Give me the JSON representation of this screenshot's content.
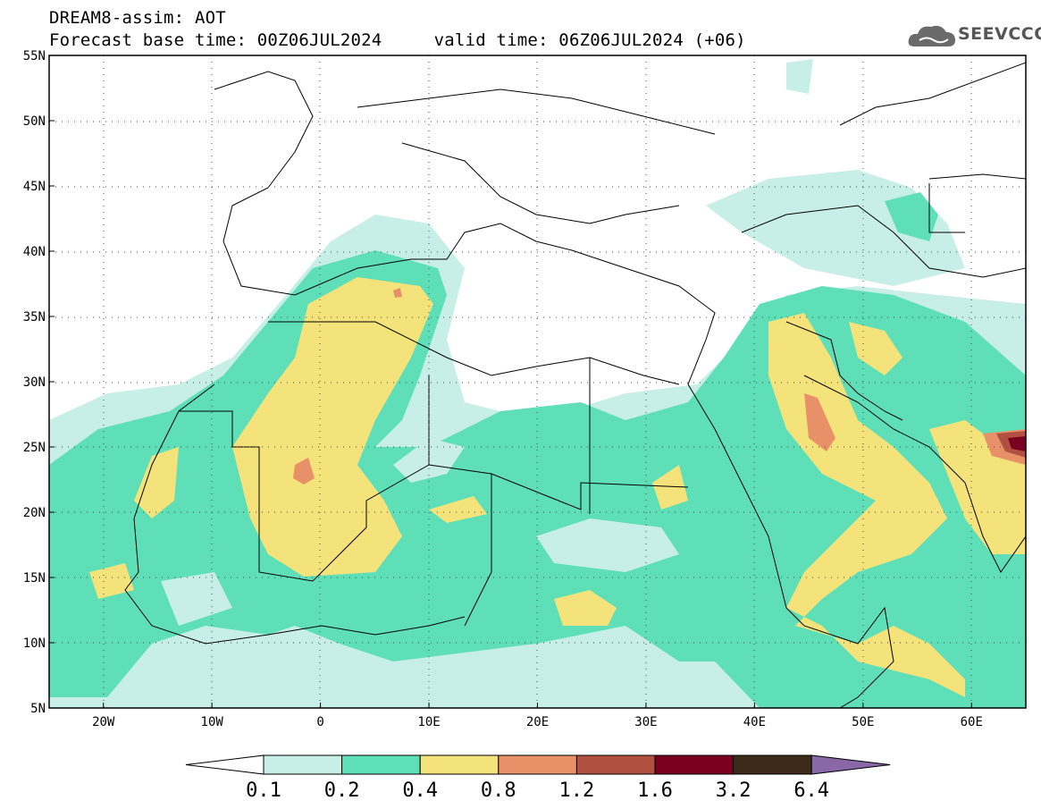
{
  "header": {
    "title_line1": "DREAM8-assim: AOT",
    "title_line2": "Forecast base time: 00Z06JUL2024     valid time: 06Z06JUL2024 (+06)"
  },
  "logo": {
    "text": "SEEVCCC",
    "icon": "cloud-logo-icon"
  },
  "map": {
    "lon_range": [
      -25,
      65
    ],
    "lat_range": [
      5,
      55
    ],
    "lat_ticks": [
      {
        "value": 55,
        "label": "55N"
      },
      {
        "value": 50,
        "label": "50N"
      },
      {
        "value": 45,
        "label": "45N"
      },
      {
        "value": 40,
        "label": "40N"
      },
      {
        "value": 35,
        "label": "35N"
      },
      {
        "value": 30,
        "label": "30N"
      },
      {
        "value": 25,
        "label": "25N"
      },
      {
        "value": 20,
        "label": "20N"
      },
      {
        "value": 15,
        "label": "15N"
      },
      {
        "value": 10,
        "label": "10N"
      },
      {
        "value": 5,
        "label": "5N"
      }
    ],
    "lon_ticks": [
      {
        "value": -20,
        "label": "20W"
      },
      {
        "value": -10,
        "label": "10W"
      },
      {
        "value": 0,
        "label": "0"
      },
      {
        "value": 10,
        "label": "10E"
      },
      {
        "value": 20,
        "label": "20E"
      },
      {
        "value": 30,
        "label": "30E"
      },
      {
        "value": 40,
        "label": "40E"
      },
      {
        "value": 50,
        "label": "50E"
      },
      {
        "value": 60,
        "label": "60E"
      }
    ],
    "grid": "dotted"
  },
  "colorbar": {
    "labels": [
      "0.1",
      "0.2",
      "0.4",
      "0.8",
      "1.2",
      "1.6",
      "3.2",
      "6.4"
    ],
    "colors": [
      "#ffffff",
      "#c8eee8",
      "#5fdfb8",
      "#f4e37a",
      "#e89068",
      "#b05040",
      "#7a0020",
      "#3e2a18",
      "#8a68a8"
    ]
  }
}
